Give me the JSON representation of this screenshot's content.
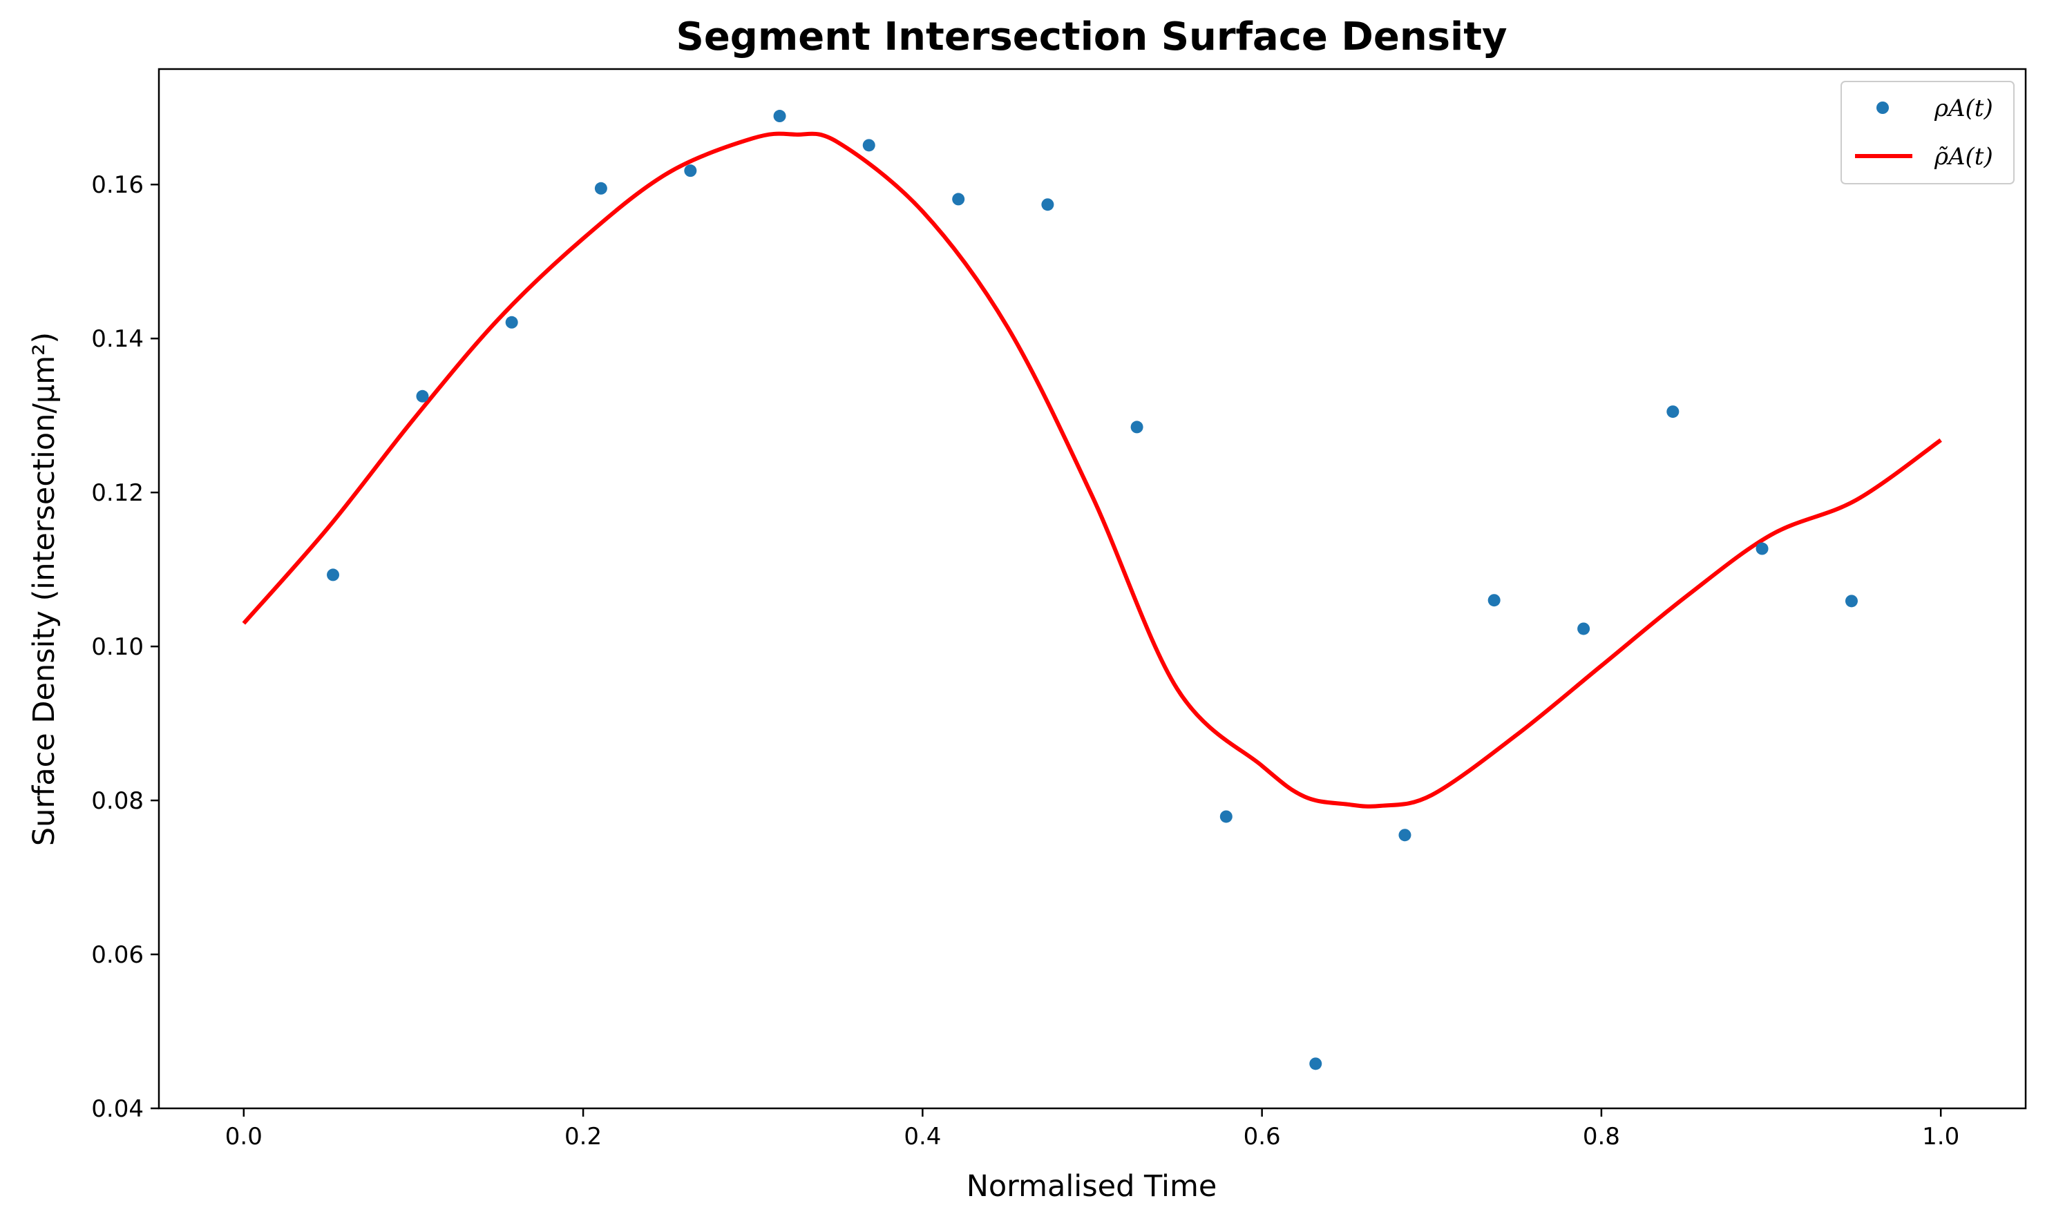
{
  "chart_data": {
    "type": "scatter",
    "title": "Segment Intersection Surface Density",
    "xlabel": "Normalised Time",
    "ylabel": "Surface Density (intersection/μm²)",
    "xlim": [
      -0.05,
      1.05
    ],
    "ylim": [
      0.04,
      0.175
    ],
    "xticks": [
      0.0,
      0.2,
      0.4,
      0.6,
      0.8,
      1.0
    ],
    "xtick_labels": [
      "0.0",
      "0.2",
      "0.4",
      "0.6",
      "0.8",
      "1.0"
    ],
    "yticks": [
      0.04,
      0.06,
      0.08,
      0.1,
      0.12,
      0.14,
      0.16
    ],
    "ytick_labels": [
      "0.04",
      "0.06",
      "0.08",
      "0.10",
      "0.12",
      "0.14",
      "0.16"
    ],
    "legend_position": "top-right",
    "grid": false,
    "series": [
      {
        "name": "ρA(t)",
        "kind": "scatter",
        "color": "#1f77b4",
        "x": [
          0.0526,
          0.1053,
          0.1579,
          0.2105,
          0.2632,
          0.3158,
          0.3684,
          0.4211,
          0.4737,
          0.5263,
          0.5789,
          0.6316,
          0.6842,
          0.7368,
          0.7895,
          0.8421,
          0.8947,
          0.9474
        ],
        "y": [
          0.1093,
          0.1325,
          0.1421,
          0.1595,
          0.1618,
          0.1689,
          0.1651,
          0.1581,
          0.1574,
          0.1285,
          0.0779,
          0.0458,
          0.0755,
          0.106,
          0.1023,
          0.1305,
          0.1127,
          0.1059
        ]
      },
      {
        "name": "ρ̃A(t)",
        "kind": "line",
        "color": "#ff0000",
        "x": [
          0.0,
          0.05,
          0.1,
          0.15,
          0.2,
          0.25,
          0.3,
          0.325,
          0.35,
          0.4,
          0.45,
          0.5,
          0.55,
          0.6,
          0.625,
          0.65,
          0.67,
          0.7,
          0.75,
          0.8,
          0.85,
          0.9,
          0.95,
          1.0
        ],
        "y": [
          0.103,
          0.1155,
          0.1295,
          0.1425,
          0.153,
          0.1615,
          0.166,
          0.1665,
          0.1655,
          0.1565,
          0.1415,
          0.1195,
          0.0945,
          0.0845,
          0.0805,
          0.0795,
          0.0793,
          0.0807,
          0.0885,
          0.0975,
          0.1065,
          0.1145,
          0.119,
          0.1268
        ]
      }
    ]
  }
}
